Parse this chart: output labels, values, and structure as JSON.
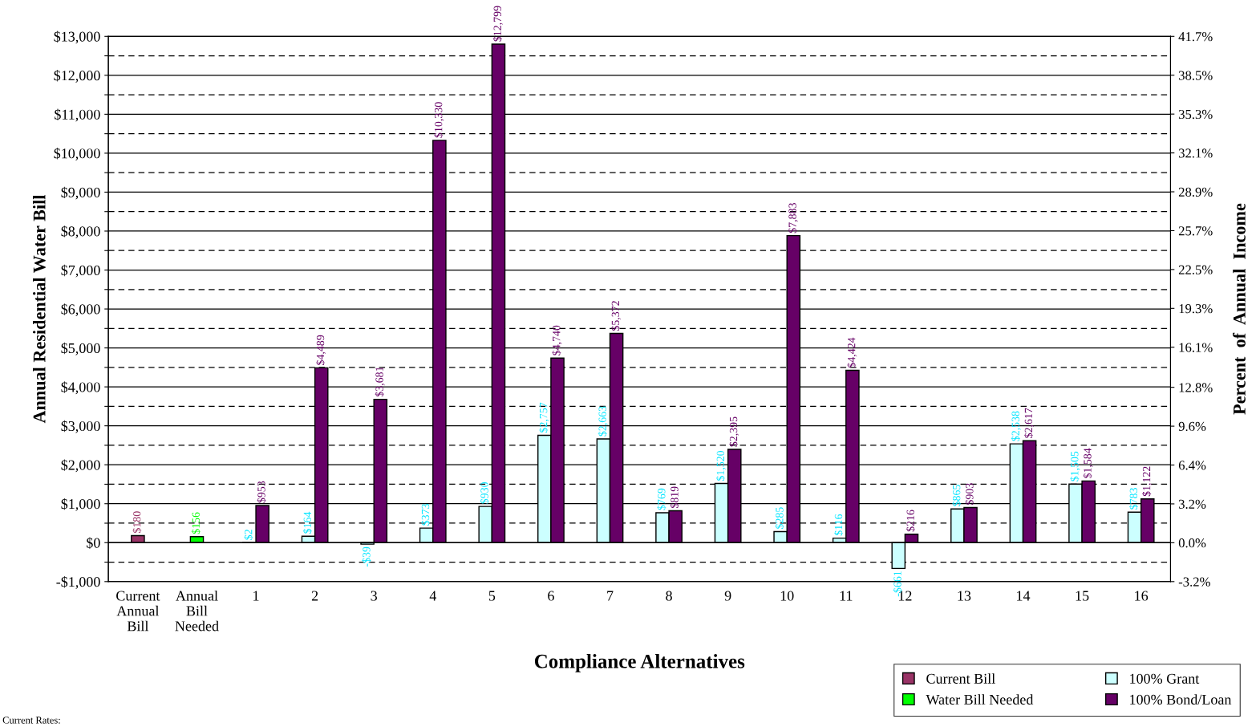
{
  "chart_data": {
    "type": "bar",
    "categories": [
      "Current\nAnnual\nBill",
      "Annual\nBill\nNeeded",
      "1",
      "2",
      "3",
      "4",
      "5",
      "6",
      "7",
      "8",
      "9",
      "10",
      "11",
      "12",
      "13",
      "14",
      "15",
      "16"
    ],
    "series": [
      {
        "name": "Current Bill",
        "color": "#993366",
        "values": [
          180,
          null,
          null,
          null,
          null,
          null,
          null,
          null,
          null,
          null,
          null,
          null,
          null,
          null,
          null,
          null,
          null,
          null
        ],
        "value_labels": [
          "$180",
          null,
          null,
          null,
          null,
          null,
          null,
          null,
          null,
          null,
          null,
          null,
          null,
          null,
          null,
          null,
          null,
          null
        ]
      },
      {
        "name": "Water Bill Needed",
        "color": "#00ff00",
        "values": [
          null,
          156,
          null,
          null,
          null,
          null,
          null,
          null,
          null,
          null,
          null,
          null,
          null,
          null,
          null,
          null,
          null,
          null
        ],
        "value_labels": [
          null,
          "$156",
          null,
          null,
          null,
          null,
          null,
          null,
          null,
          null,
          null,
          null,
          null,
          null,
          null,
          null,
          null,
          null
        ]
      },
      {
        "name": "100% Grant",
        "color": "#ccffff",
        "values": [
          null,
          null,
          2,
          164,
          -39,
          373,
          930,
          2757,
          2663,
          769,
          1520,
          285,
          116,
          -661,
          865,
          2538,
          1505,
          783
        ],
        "value_labels": [
          null,
          null,
          "$2",
          "$164",
          "-$39",
          "$373",
          "$930",
          "$2,757",
          "$2,663",
          "$769",
          "$1,520",
          "$285",
          "$116",
          "-$661",
          "$865",
          "$2,538",
          "$1,505",
          "$783"
        ]
      },
      {
        "name": "100% Bond/Loan",
        "color": "#660066",
        "values": [
          null,
          null,
          953,
          4489,
          3681,
          10330,
          12799,
          4740,
          5372,
          819,
          2395,
          7883,
          4424,
          216,
          903,
          2617,
          1584,
          1122
        ],
        "value_labels": [
          null,
          null,
          "$953",
          "$4,489",
          "$3,681",
          "$10,330",
          "$12,799",
          "$4,740",
          "$5,372",
          "$819",
          "$2,395",
          "$7,883",
          "$4,424",
          "$216",
          "$903",
          "$2,617",
          "$1,584",
          "$1,122"
        ]
      }
    ],
    "xlabel": "Compliance Alternatives",
    "ylabel": "Annual Residential Water Bill",
    "y2label": "Percent  of  Annual  Income",
    "ylim": [
      -1000,
      13000
    ],
    "yticks": [
      {
        "value": -1000,
        "label": "-$1,000"
      },
      {
        "value": -500,
        "label": null
      },
      {
        "value": 0,
        "label": "$0"
      },
      {
        "value": 500,
        "label": null
      },
      {
        "value": 1000,
        "label": "$1,000"
      },
      {
        "value": 1500,
        "label": null
      },
      {
        "value": 2000,
        "label": "$2,000"
      },
      {
        "value": 2500,
        "label": null
      },
      {
        "value": 3000,
        "label": "$3,000"
      },
      {
        "value": 3500,
        "label": null
      },
      {
        "value": 4000,
        "label": "$4,000"
      },
      {
        "value": 4500,
        "label": null
      },
      {
        "value": 5000,
        "label": "$5,000"
      },
      {
        "value": 5500,
        "label": null
      },
      {
        "value": 6000,
        "label": "$6,000"
      },
      {
        "value": 6500,
        "label": null
      },
      {
        "value": 7000,
        "label": "$7,000"
      },
      {
        "value": 7500,
        "label": null
      },
      {
        "value": 8000,
        "label": "$8,000"
      },
      {
        "value": 8500,
        "label": null
      },
      {
        "value": 9000,
        "label": "$9,000"
      },
      {
        "value": 9500,
        "label": null
      },
      {
        "value": 10000,
        "label": "$10,000"
      },
      {
        "value": 10500,
        "label": null
      },
      {
        "value": 11000,
        "label": "$11,000"
      },
      {
        "value": 11500,
        "label": null
      },
      {
        "value": 12000,
        "label": "$12,000"
      },
      {
        "value": 12500,
        "label": null
      },
      {
        "value": 13000,
        "label": "$13,000"
      }
    ],
    "y2lim": [
      -3.2,
      41.7
    ],
    "y2ticks": [
      {
        "value": -3.2,
        "label": "-3.2%"
      },
      {
        "value": 0.0,
        "label": "0.0%"
      },
      {
        "value": 3.2,
        "label": "3.2%"
      },
      {
        "value": 6.4,
        "label": "6.4%"
      },
      {
        "value": 9.6,
        "label": "9.6%"
      },
      {
        "value": 12.8,
        "label": "12.8%"
      },
      {
        "value": 16.1,
        "label": "16.1%"
      },
      {
        "value": 19.3,
        "label": "19.3%"
      },
      {
        "value": 22.5,
        "label": "22.5%"
      },
      {
        "value": 25.7,
        "label": "25.7%"
      },
      {
        "value": 28.9,
        "label": "28.9%"
      },
      {
        "value": 32.1,
        "label": "32.1%"
      },
      {
        "value": 35.3,
        "label": "35.3%"
      },
      {
        "value": 38.5,
        "label": "38.5%"
      },
      {
        "value": 41.7,
        "label": "41.7%"
      }
    ],
    "grid": "y",
    "legend": "bottom right",
    "annotations": [
      "Current Rates:"
    ]
  }
}
